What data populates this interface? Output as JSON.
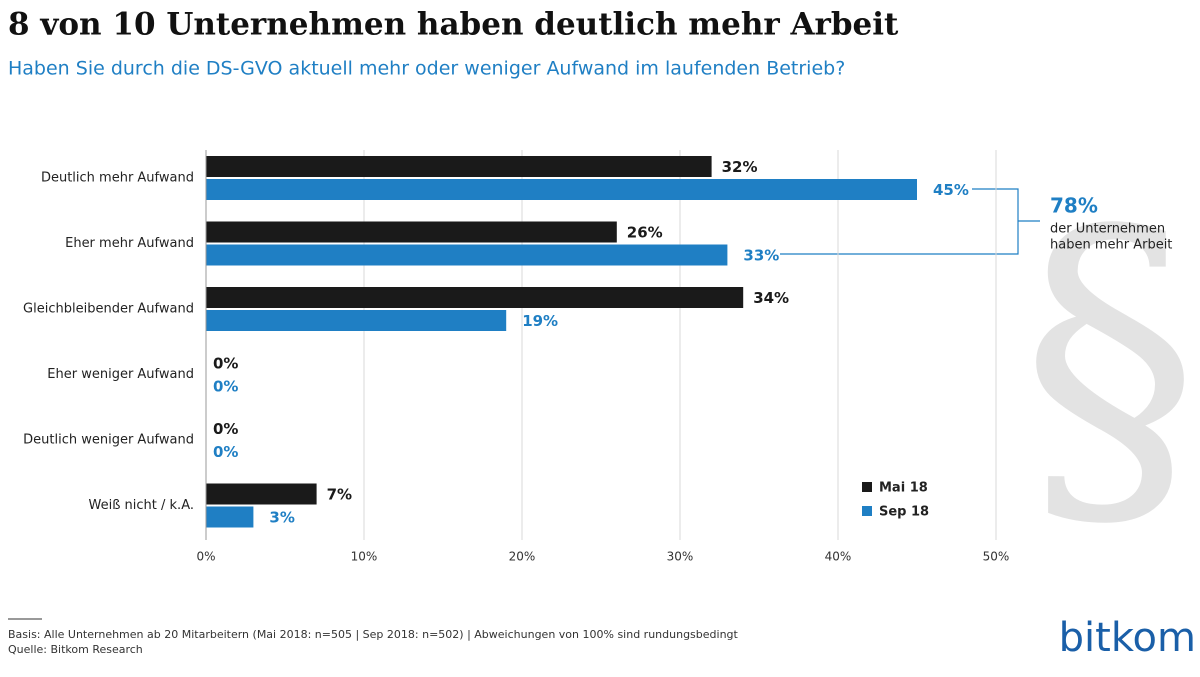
{
  "chart_data": {
    "type": "hbar",
    "title": "8 von 10 Unternehmen haben deutlich mehr Arbeit",
    "subtitle": "Haben Sie durch die DS-GVO aktuell mehr oder weniger Aufwand im laufenden Betrieb?",
    "categories": [
      "Deutlich mehr Aufwand",
      "Eher mehr Aufwand",
      "Gleichbleibender Aufwand",
      "Eher weniger Aufwand",
      "Deutlich weniger Aufwand",
      "Weiß nicht / k.A."
    ],
    "series": [
      {
        "name": "Mai 18",
        "color": "#1a1a1a",
        "values": [
          32,
          26,
          34,
          0,
          0,
          7
        ],
        "value_labels": [
          "32%",
          "26%",
          "34%",
          "0%",
          "0%",
          "7%"
        ]
      },
      {
        "name": "Sep 18",
        "color": "#1f7fc4",
        "values": [
          45,
          33,
          19,
          0,
          0,
          3
        ],
        "value_labels": [
          "45%",
          "33%",
          "19%",
          "0%",
          "0%",
          "3%"
        ]
      }
    ],
    "xlim": [
      0,
      50
    ],
    "xticks": [
      {
        "value": 0,
        "label": "0%"
      },
      {
        "value": 10,
        "label": "10%"
      },
      {
        "value": 20,
        "label": "20%"
      },
      {
        "value": 30,
        "label": "30%"
      },
      {
        "value": 40,
        "label": "40%"
      },
      {
        "value": 50,
        "label": "50%"
      }
    ],
    "grid": true,
    "legend": "lower right",
    "annotation": {
      "label": "78%",
      "text": [
        "der Unternehmen",
        "haben mehr Arbeit"
      ]
    },
    "watermark": "§",
    "footnotes": [
      "Basis: Alle Unternehmen ab 20 Mitarbeitern (Mai 2018: n=505 | Sep 2018:  n=502) | Abweichungen von 100% sind rundungsbedingt",
      "Quelle: Bitkom Research"
    ],
    "logo": "bitkom"
  }
}
